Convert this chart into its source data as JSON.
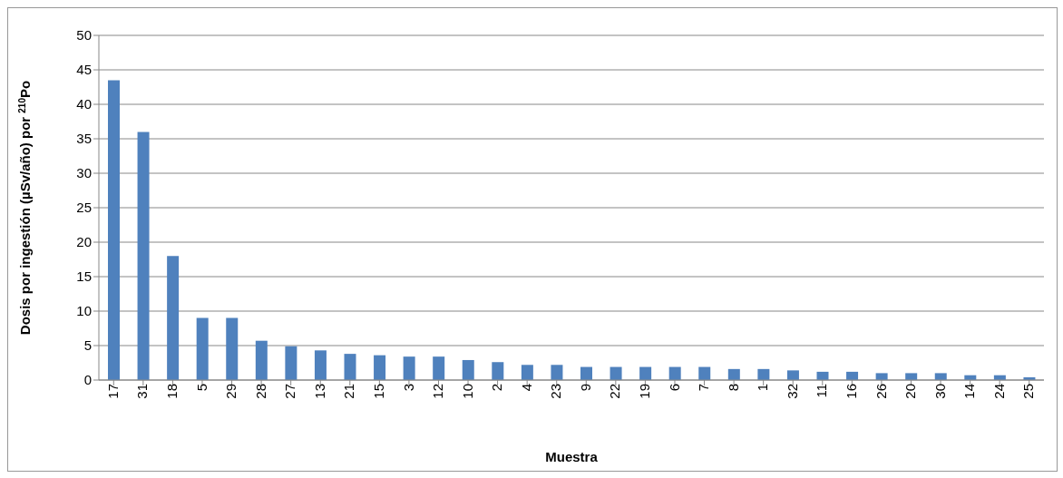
{
  "chart_data": {
    "type": "bar",
    "xlabel": "Muestra",
    "ylabel": "Dosis por ingestión (µSv/año) por $^{210}$Po",
    "categories": [
      "17",
      "31",
      "18",
      "5",
      "29",
      "28",
      "27",
      "13",
      "21",
      "15",
      "3",
      "12",
      "10",
      "2",
      "4",
      "23",
      "9",
      "22",
      "19",
      "6",
      "7",
      "8",
      "1",
      "32",
      "11",
      "16",
      "26",
      "20",
      "30",
      "14",
      "24",
      "25"
    ],
    "values": [
      43.5,
      36,
      18,
      9,
      9,
      5.7,
      4.9,
      4.3,
      3.8,
      3.6,
      3.4,
      3.4,
      2.9,
      2.6,
      2.2,
      2.2,
      1.9,
      1.9,
      1.9,
      1.9,
      1.9,
      1.6,
      1.6,
      1.4,
      1.2,
      1.2,
      1.0,
      1.0,
      1.0,
      0.7,
      0.7,
      0.4
    ],
    "color": "#4f81bd",
    "ylim": [
      0,
      50
    ],
    "yticks": [
      0,
      5,
      10,
      15,
      20,
      25,
      30,
      35,
      40,
      45,
      50
    ],
    "grid": "y"
  }
}
